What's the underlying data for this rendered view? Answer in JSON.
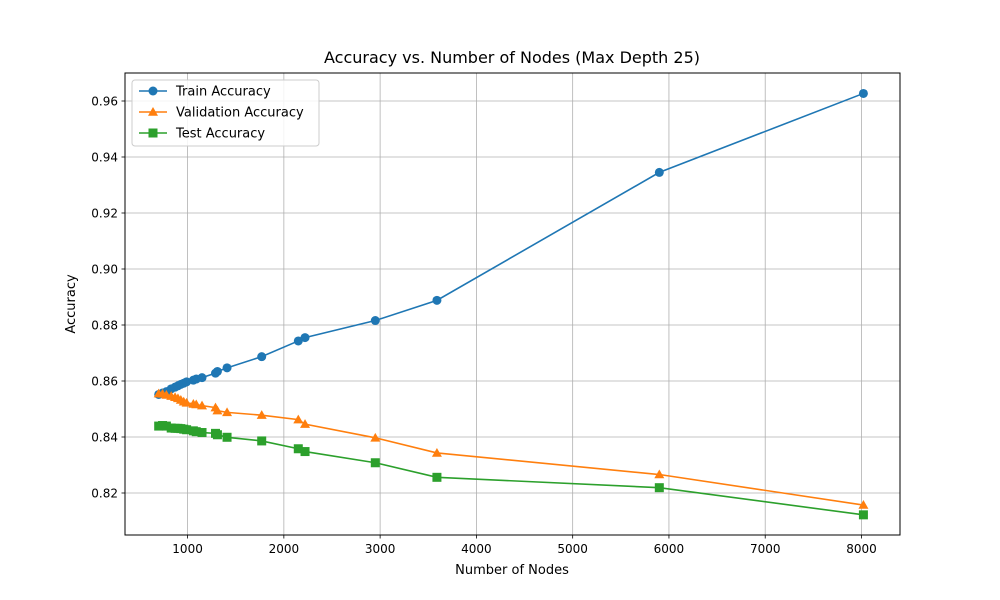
{
  "chart_data": {
    "type": "line",
    "title": "Accuracy vs. Number of Nodes (Max Depth 25)",
    "xlabel": "Number of Nodes",
    "ylabel": "Accuracy",
    "xlim": [
      350,
      8400
    ],
    "ylim": [
      0.805,
      0.97
    ],
    "xticks": [
      1000,
      2000,
      3000,
      4000,
      5000,
      6000,
      7000,
      8000
    ],
    "yticks": [
      0.82,
      0.84,
      0.86,
      0.88,
      0.9,
      0.92,
      0.94,
      0.96
    ],
    "ytick_labels": [
      "0.82",
      "0.84",
      "0.86",
      "0.88",
      "0.90",
      "0.92",
      "0.94",
      "0.96"
    ],
    "grid": true,
    "legend_position": "top-left",
    "x": [
      700,
      740,
      780,
      830,
      870,
      900,
      930,
      960,
      990,
      1060,
      1090,
      1150,
      1290,
      1310,
      1410,
      1770,
      2150,
      2220,
      2950,
      3590,
      5900,
      8020
    ],
    "series": [
      {
        "name": "Train Accuracy",
        "color": "#1f77b4",
        "marker": "circle",
        "values": [
          0.8552,
          0.8557,
          0.8562,
          0.8572,
          0.8578,
          0.8583,
          0.8588,
          0.8592,
          0.8597,
          0.8603,
          0.8607,
          0.8612,
          0.8628,
          0.8634,
          0.8647,
          0.8687,
          0.8743,
          0.8755,
          0.8816,
          0.8888,
          0.9345,
          0.9627
        ]
      },
      {
        "name": "Validation Accuracy",
        "color": "#ff7f0e",
        "marker": "triangle",
        "values": [
          0.8555,
          0.8554,
          0.855,
          0.8546,
          0.8542,
          0.8538,
          0.8532,
          0.8526,
          0.8522,
          0.8518,
          0.8516,
          0.8512,
          0.8505,
          0.8494,
          0.8488,
          0.8478,
          0.8462,
          0.8446,
          0.8397,
          0.8343,
          0.8266,
          0.8157
        ]
      },
      {
        "name": "Test Accuracy",
        "color": "#2ca02c",
        "marker": "square",
        "values": [
          0.8439,
          0.8441,
          0.8439,
          0.8432,
          0.8431,
          0.8431,
          0.843,
          0.8428,
          0.8426,
          0.8422,
          0.8419,
          0.8416,
          0.8413,
          0.8408,
          0.8399,
          0.8386,
          0.8358,
          0.8348,
          0.8308,
          0.8256,
          0.8219,
          0.8122
        ]
      }
    ]
  }
}
